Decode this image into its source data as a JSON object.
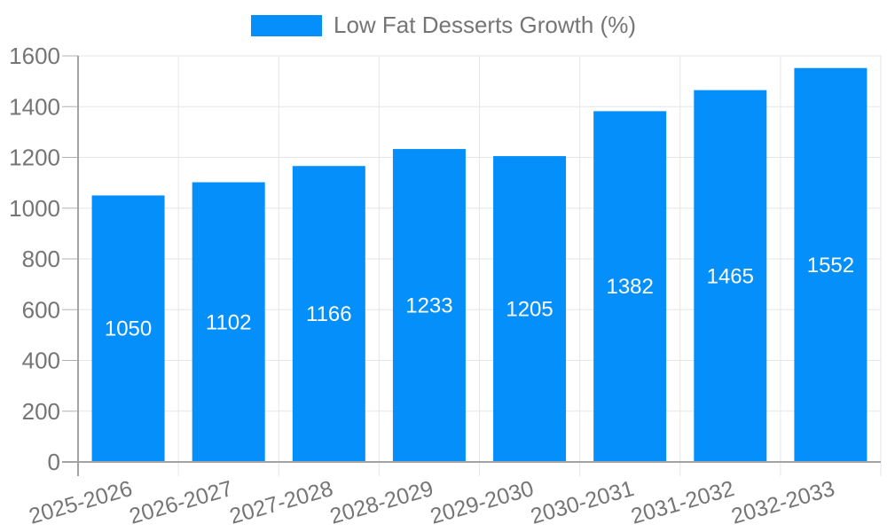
{
  "legend": {
    "position": "top",
    "items": [
      {
        "label": "Low Fat Desserts Growth (%)",
        "swatch_color": "#058FFA"
      }
    ]
  },
  "chart_data": {
    "type": "bar",
    "title": "",
    "xlabel": "",
    "ylabel": "",
    "categories": [
      "2025-2026",
      "2026-2027",
      "2027-2028",
      "2028-2029",
      "2029-2030",
      "2030-2031",
      "2031-2032",
      "2032-2033"
    ],
    "series": [
      {
        "name": "Low Fat Desserts Growth (%)",
        "values": [
          1050,
          1102,
          1166,
          1233,
          1205,
          1382,
          1465,
          1552
        ]
      }
    ],
    "bar_value_labels_shown": true,
    "ylim": [
      0,
      1600
    ],
    "yticks": [
      0,
      200,
      400,
      600,
      800,
      1000,
      1200,
      1400,
      1600
    ],
    "grid": true,
    "legend_position": "top",
    "x_label_rotation_deg": -16,
    "colors": {
      "bar": "#058FFA",
      "grid": "#e6e6e6",
      "axis": "#a3a3a3",
      "tick_mark": "#b0b0b0",
      "tick_text": "#757575",
      "value_label": "#ffffff",
      "background": "#ffffff"
    }
  }
}
